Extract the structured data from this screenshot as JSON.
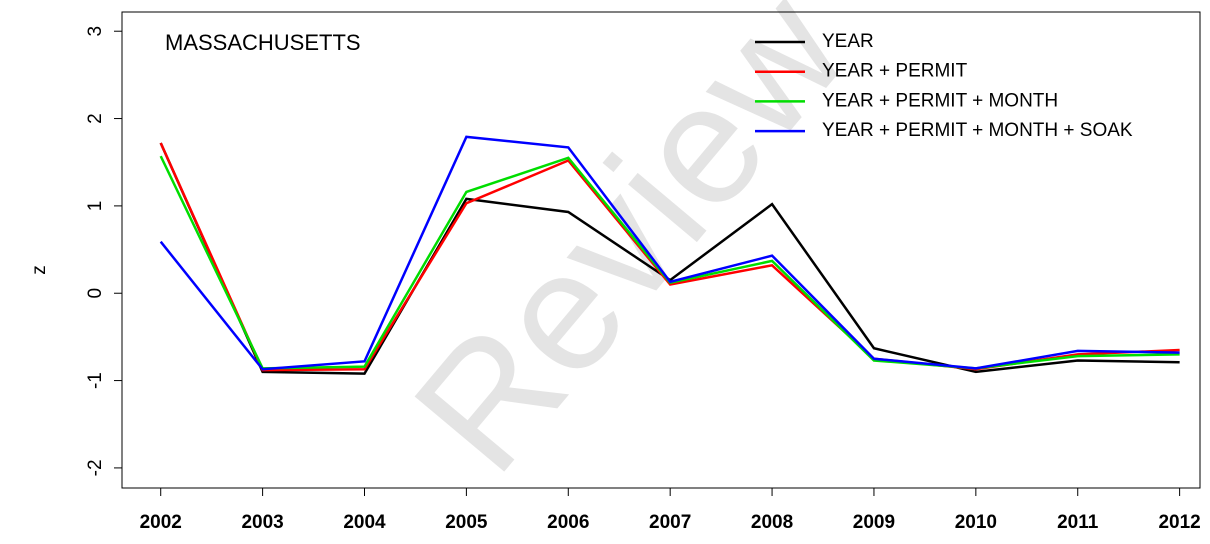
{
  "chart_data": {
    "type": "line",
    "annotation": "MASSACHUSETTS",
    "watermark": "Review",
    "y_label": "z",
    "x": [
      2002,
      2003,
      2004,
      2005,
      2006,
      2007,
      2008,
      2009,
      2010,
      2011,
      2012
    ],
    "xlim": [
      2001.62,
      2012.2
    ],
    "xticks": [
      2002,
      2003,
      2004,
      2005,
      2006,
      2007,
      2008,
      2009,
      2010,
      2011,
      2012
    ],
    "ylim": [
      -2.23,
      3.22
    ],
    "yticks": [
      -2,
      -1,
      0,
      1,
      2,
      3
    ],
    "legend": "top-right",
    "series": [
      {
        "name": "YEAR",
        "color": "#000000",
        "values": [
          1.72,
          -0.9,
          -0.92,
          1.08,
          0.93,
          0.15,
          1.02,
          -0.63,
          -0.9,
          -0.77,
          -0.79
        ]
      },
      {
        "name": "YEAR + PERMIT",
        "color": "#ff0000",
        "values": [
          1.72,
          -0.88,
          -0.87,
          1.03,
          1.52,
          0.1,
          0.32,
          -0.75,
          -0.87,
          -0.7,
          -0.65
        ]
      },
      {
        "name": "YEAR + PERMIT + MONTH",
        "color": "#00dd00",
        "values": [
          1.57,
          -0.86,
          -0.84,
          1.16,
          1.55,
          0.12,
          0.37,
          -0.77,
          -0.86,
          -0.72,
          -0.7
        ]
      },
      {
        "name": "YEAR + PERMIT + MONTH + SOAK",
        "color": "#0000ff",
        "values": [
          0.59,
          -0.87,
          -0.78,
          1.79,
          1.67,
          0.13,
          0.43,
          -0.75,
          -0.86,
          -0.66,
          -0.68
        ]
      }
    ]
  }
}
